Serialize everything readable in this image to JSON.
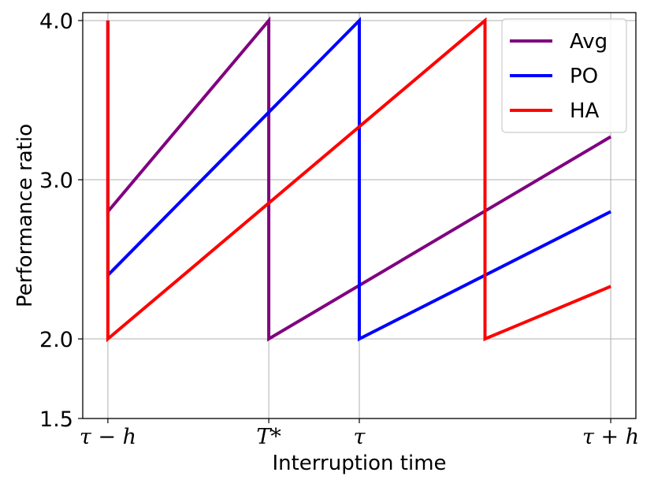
{
  "chart_data": {
    "type": "line",
    "xlabel": "Interruption time",
    "ylabel": "Performance ratio",
    "ylim": [
      1.5,
      4.05
    ],
    "xlim": [
      -0.05,
      1.05
    ],
    "grid": true,
    "legend_position": "top-right",
    "x_ticks": [
      {
        "value": 0.0,
        "label": "τ − h"
      },
      {
        "value": 0.32,
        "label": "T*"
      },
      {
        "value": 0.5,
        "label": "τ"
      },
      {
        "value": 1.0,
        "label": "τ + h"
      }
    ],
    "y_ticks": [
      {
        "value": 1.5,
        "label": "1.5"
      },
      {
        "value": 2.0,
        "label": "2.0"
      },
      {
        "value": 3.0,
        "label": "3.0"
      },
      {
        "value": 4.0,
        "label": "4.0"
      }
    ],
    "series": [
      {
        "name": "Avg",
        "color": "#800080",
        "points": [
          [
            0.0,
            4.0
          ],
          [
            0.0,
            2.8
          ],
          [
            0.32,
            4.0
          ],
          [
            0.32,
            2.0
          ],
          [
            1.0,
            3.27
          ]
        ]
      },
      {
        "name": "PO",
        "color": "#0000ff",
        "points": [
          [
            0.0,
            4.0
          ],
          [
            0.0,
            2.4
          ],
          [
            0.5,
            4.0
          ],
          [
            0.5,
            2.0
          ],
          [
            1.0,
            2.8
          ]
        ]
      },
      {
        "name": "HA",
        "color": "#ff0000",
        "points": [
          [
            0.0,
            4.0
          ],
          [
            0.0,
            2.0
          ],
          [
            0.75,
            4.0
          ],
          [
            0.75,
            2.0
          ],
          [
            1.0,
            2.33
          ]
        ]
      }
    ]
  }
}
